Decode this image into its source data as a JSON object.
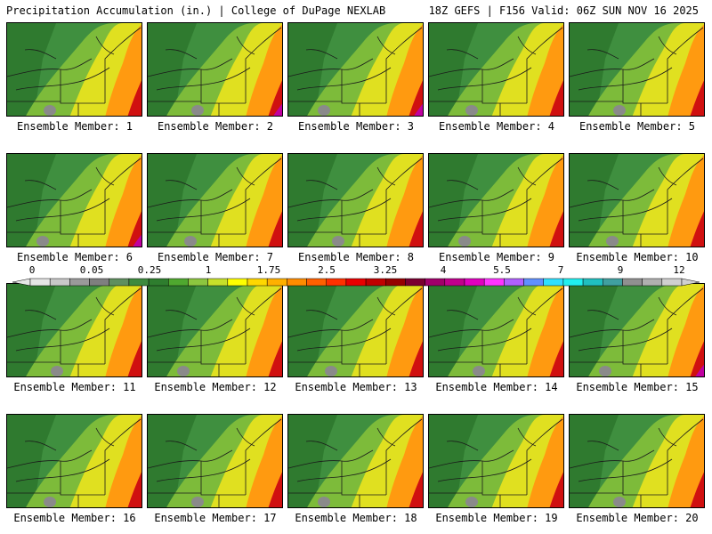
{
  "header": {
    "left": "Precipitation Accumulation (in.) | College of DuPage NEXLAB",
    "right": "18Z GEFS | F156 Valid: 06Z SUN NOV 16 2025"
  },
  "panels": [
    {
      "caption": "Ensemble Member: 1"
    },
    {
      "caption": "Ensemble Member: 2"
    },
    {
      "caption": "Ensemble Member: 3"
    },
    {
      "caption": "Ensemble Member: 4"
    },
    {
      "caption": "Ensemble Member: 5"
    },
    {
      "caption": "Ensemble Member: 6"
    },
    {
      "caption": "Ensemble Member: 7"
    },
    {
      "caption": "Ensemble Member: 8"
    },
    {
      "caption": "Ensemble Member: 9"
    },
    {
      "caption": "Ensemble Member: 10"
    },
    {
      "caption": "Ensemble Member: 11"
    },
    {
      "caption": "Ensemble Member: 12"
    },
    {
      "caption": "Ensemble Member: 13"
    },
    {
      "caption": "Ensemble Member: 14"
    },
    {
      "caption": "Ensemble Member: 15"
    },
    {
      "caption": "Ensemble Member: 16"
    },
    {
      "caption": "Ensemble Member: 17"
    },
    {
      "caption": "Ensemble Member: 18"
    },
    {
      "caption": "Ensemble Member: 19"
    },
    {
      "caption": "Ensemble Member: 20"
    }
  ],
  "colorbar": {
    "labels": [
      "0",
      "0.05",
      "0.25",
      "1",
      "1.75",
      "2.5",
      "3.25",
      "4",
      "5.5",
      "7",
      "9",
      "12"
    ],
    "colors": [
      "#e6e6e6",
      "#c8c8c8",
      "#9a9a9a",
      "#7f7f7f",
      "#5f8f5f",
      "#3e8a3e",
      "#2e7d2e",
      "#4fa82f",
      "#8cc63f",
      "#c6e02a",
      "#ffff00",
      "#ffd700",
      "#ffb000",
      "#ff8c00",
      "#ff6000",
      "#ff3000",
      "#e80000",
      "#c00000",
      "#960000",
      "#7a0030",
      "#a0006a",
      "#c0008c",
      "#e000c0",
      "#ff33ff",
      "#b060ff",
      "#6090ff",
      "#30e0ff",
      "#20f0f0",
      "#20c0c0",
      "#40a0a0",
      "#909090",
      "#b0b0b0",
      "#d0d0d0"
    ]
  }
}
